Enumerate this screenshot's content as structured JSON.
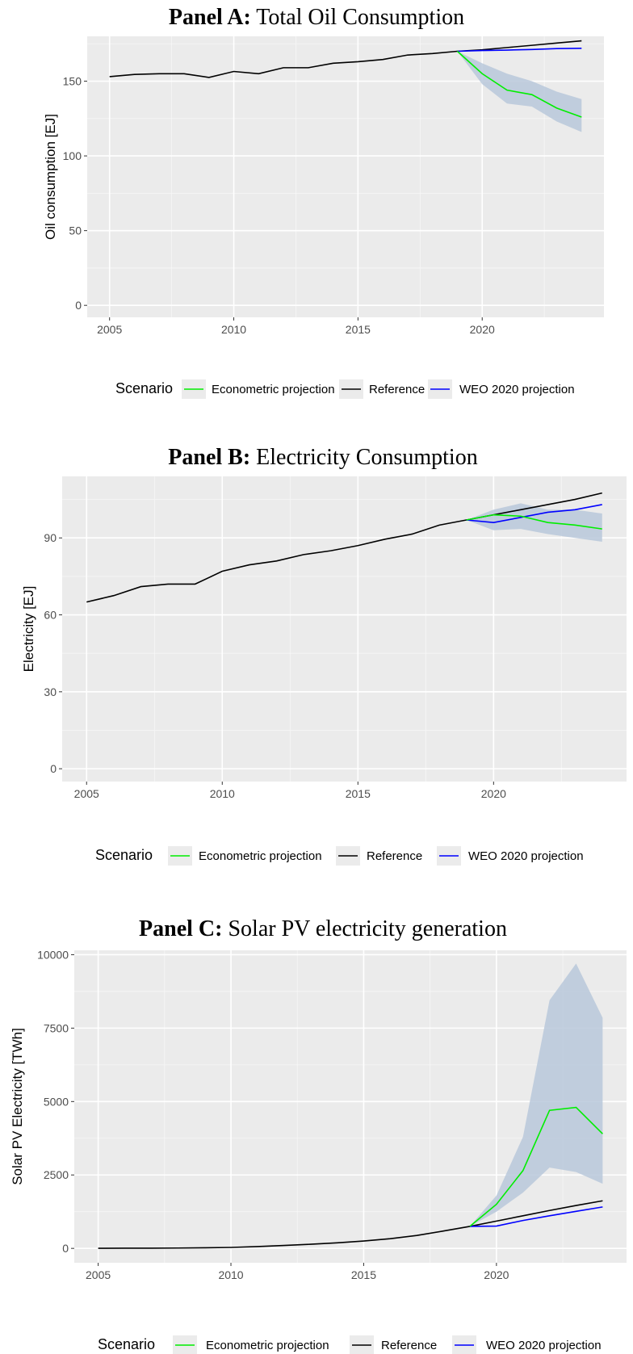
{
  "chart_data": [
    {
      "type": "line",
      "title_bold": "Panel A:",
      "title": "Total Oil Consumption",
      "xlabel": "",
      "ylabel": "Oil consumption [EJ]",
      "xlim": [
        2004.1,
        2024.9
      ],
      "ylim": [
        -8,
        180
      ],
      "xticks": [
        2005,
        2010,
        2015,
        2020
      ],
      "yticks": [
        0,
        50,
        100,
        150
      ],
      "grid": true,
      "legend_position": "bottom",
      "legend_title": "Scenario",
      "series": [
        {
          "name": "Reference",
          "color": "#000000",
          "x": [
            2005,
            2006,
            2007,
            2008,
            2009,
            2010,
            2011,
            2012,
            2013,
            2014,
            2015,
            2016,
            2017,
            2018,
            2019,
            2020,
            2021,
            2022,
            2023,
            2024
          ],
          "y": [
            153,
            154.5,
            155,
            155,
            152.5,
            156.5,
            155,
            159,
            159,
            162,
            163,
            164.5,
            167.5,
            168.5,
            170,
            171,
            172.5,
            174,
            175.5,
            177
          ]
        },
        {
          "name": "WEO 2020 projection",
          "color": "#0000ff",
          "x": [
            2019,
            2020,
            2021,
            2022,
            2023,
            2024
          ],
          "y": [
            170,
            170.5,
            170.8,
            171.2,
            171.8,
            172
          ]
        },
        {
          "name": "Econometric projection",
          "color": "#00ee00",
          "x": [
            2019,
            2020,
            2021,
            2022,
            2023,
            2024
          ],
          "y": [
            170,
            155,
            144,
            141,
            132,
            126
          ]
        }
      ],
      "ribbon": {
        "color": "#b8c8da",
        "x": [
          2019,
          2020,
          2021,
          2022,
          2023,
          2024
        ],
        "lower": [
          170,
          148,
          135,
          133,
          123,
          116
        ],
        "upper": [
          170,
          162,
          155,
          150,
          143,
          138
        ]
      }
    },
    {
      "type": "line",
      "title_bold": "Panel B:",
      "title": "Electricity Consumption",
      "xlabel": "",
      "ylabel": "Electricity [EJ]",
      "xlim": [
        2004.1,
        2024.9
      ],
      "ylim": [
        -5,
        114
      ],
      "xticks": [
        2005,
        2010,
        2015,
        2020
      ],
      "yticks": [
        0,
        30,
        60,
        90
      ],
      "grid": true,
      "legend_position": "bottom",
      "legend_title": "Scenario",
      "series": [
        {
          "name": "Reference",
          "color": "#000000",
          "x": [
            2005,
            2006,
            2007,
            2008,
            2009,
            2010,
            2011,
            2012,
            2013,
            2014,
            2015,
            2016,
            2017,
            2018,
            2019,
            2020,
            2021,
            2022,
            2023,
            2024
          ],
          "y": [
            65,
            67.5,
            71,
            72,
            72,
            77,
            79.5,
            81,
            83.5,
            85,
            87,
            89.5,
            91.5,
            95,
            97,
            99,
            101,
            103,
            105,
            107.5
          ]
        },
        {
          "name": "WEO 2020 projection",
          "color": "#0000ff",
          "x": [
            2019,
            2020,
            2021,
            2022,
            2023,
            2024
          ],
          "y": [
            97,
            96,
            98,
            100,
            101,
            103
          ]
        },
        {
          "name": "Econometric projection",
          "color": "#00ee00",
          "x": [
            2019,
            2020,
            2021,
            2022,
            2023,
            2024
          ],
          "y": [
            97,
            99,
            98.5,
            96,
            95,
            93.5
          ]
        }
      ],
      "ribbon": {
        "color": "#b8c8da",
        "x": [
          2019,
          2020,
          2021,
          2022,
          2023,
          2024
        ],
        "lower": [
          97,
          93,
          93.5,
          91.5,
          90,
          88.5
        ],
        "upper": [
          97,
          101,
          103.5,
          101,
          101,
          99.5
        ]
      }
    },
    {
      "type": "line",
      "title_bold": "Panel C:",
      "title": "Solar PV electricity generation",
      "xlabel": "",
      "ylabel": "Solar PV Electricity [TWh]",
      "xlim": [
        2004.1,
        2024.9
      ],
      "ylim": [
        -490,
        10150
      ],
      "xticks": [
        2005,
        2010,
        2015,
        2020
      ],
      "yticks": [
        0,
        2500,
        5000,
        7500,
        10000
      ],
      "grid": true,
      "legend_position": "bottom",
      "legend_title": "Scenario",
      "series": [
        {
          "name": "Reference",
          "color": "#000000",
          "x": [
            2005,
            2006,
            2007,
            2008,
            2009,
            2010,
            2011,
            2012,
            2013,
            2014,
            2015,
            2016,
            2017,
            2018,
            2019,
            2020,
            2021,
            2022,
            2023,
            2024
          ],
          "y": [
            4,
            6,
            8,
            12,
            20,
            32,
            62,
            100,
            140,
            190,
            250,
            330,
            440,
            590,
            750,
            930,
            1110,
            1290,
            1460,
            1620
          ]
        },
        {
          "name": "WEO 2020 projection",
          "color": "#0000ff",
          "x": [
            2019,
            2020,
            2021,
            2022,
            2023,
            2024
          ],
          "y": [
            750,
            760,
            950,
            1110,
            1260,
            1410
          ]
        },
        {
          "name": "Econometric projection",
          "color": "#00ee00",
          "x": [
            2019,
            2020,
            2021,
            2022,
            2023,
            2024
          ],
          "y": [
            750,
            1500,
            2650,
            4700,
            4800,
            3900
          ]
        }
      ],
      "ribbon": {
        "color": "#b8c8da",
        "x": [
          2019,
          2020,
          2021,
          2022,
          2023,
          2024
        ],
        "lower": [
          750,
          1250,
          1900,
          2750,
          2600,
          2200
        ],
        "upper": [
          750,
          1800,
          3800,
          8450,
          9700,
          7850
        ]
      }
    }
  ]
}
